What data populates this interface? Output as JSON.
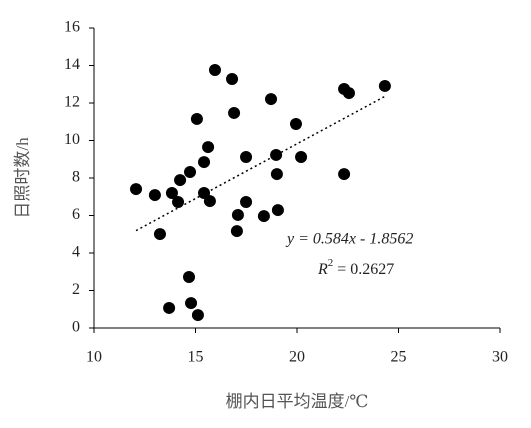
{
  "chart_data": {
    "type": "scatter",
    "x_label": "棚内日平均温度/℃",
    "y_label": "日照时数/h",
    "xlim": [
      10,
      30
    ],
    "xticks": [
      10,
      15,
      20,
      25,
      30
    ],
    "ylim": [
      0,
      16
    ],
    "yticks": [
      0,
      2,
      4,
      6,
      8,
      10,
      12,
      14,
      16
    ],
    "color": "#000000",
    "x": [
      12.07,
      13.0,
      13.25,
      13.84,
      14.14,
      14.24,
      14.73,
      14.68,
      14.78,
      15.12,
      13.7,
      15.07,
      15.42,
      15.42,
      15.62,
      15.71,
      15.96,
      16.8,
      16.9,
      17.04,
      17.09,
      17.49,
      17.49,
      18.37,
      18.72,
      18.97,
      19.01,
      19.06,
      19.95,
      20.2,
      22.32,
      22.32,
      22.56,
      24.33
    ],
    "values": [
      7.41,
      7.09,
      5.01,
      7.2,
      6.72,
      7.89,
      8.32,
      2.72,
      1.33,
      0.69,
      1.07,
      11.15,
      7.2,
      8.85,
      9.65,
      6.77,
      13.76,
      13.28,
      11.47,
      5.17,
      6.03,
      9.12,
      6.72,
      5.97,
      12.21,
      9.23,
      8.21,
      6.29,
      10.88,
      9.12,
      8.21,
      12.75,
      12.53,
      12.91
    ],
    "trendline": {
      "slope": 0.584,
      "intercept": -1.8562,
      "style": "dotted",
      "equation": "y = 0.584x - 1.8562",
      "r_squared_symbol": "R",
      "r_squared_exponent": "2",
      "r_squared_text": " = 0.2627"
    }
  }
}
